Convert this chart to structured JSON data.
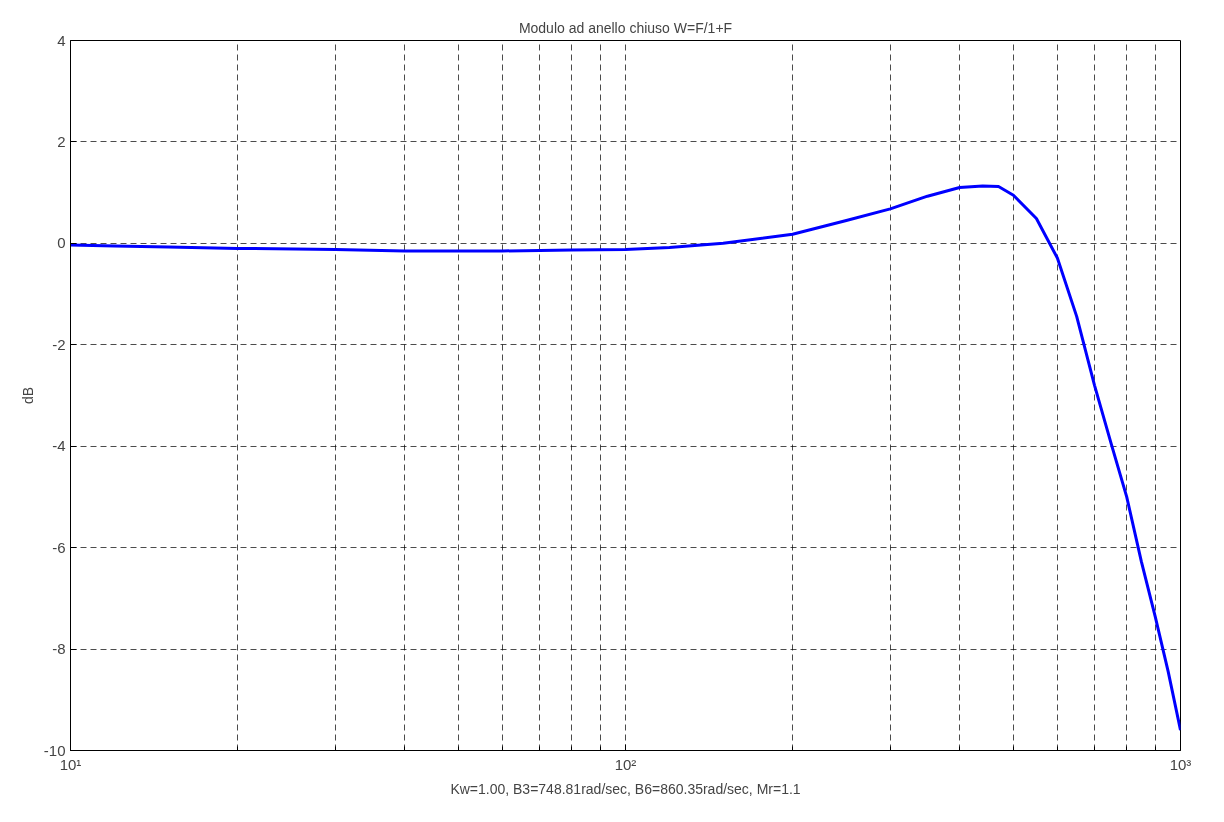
{
  "chart_data": {
    "type": "line",
    "title": "Modulo ad anello chiuso W=F/1+F",
    "xlabel": "Kw=1.00, B3=748.81rad/sec, B6=860.35rad/sec, Mr=1.1",
    "ylabel": "dB",
    "log": "x",
    "grid": true,
    "line_style": "solid",
    "marker": "none",
    "xlim": [
      10,
      1000
    ],
    "xticks": [
      {
        "value": 10,
        "label": "10¹"
      },
      {
        "value": 100,
        "label": "10²"
      },
      {
        "value": 1000,
        "label": "10³"
      }
    ],
    "ylim": [
      -10,
      4
    ],
    "yticks": [
      -10,
      -8,
      -6,
      -4,
      -2,
      0,
      2,
      4
    ],
    "series": [
      {
        "color": "#0000ff",
        "x": [
          10,
          12,
          15,
          20,
          30,
          40,
          60,
          80,
          100,
          120,
          150,
          200,
          250,
          300,
          350,
          400,
          440,
          470,
          500,
          550,
          600,
          650,
          700,
          750,
          800,
          850,
          900,
          950,
          1000
        ],
        "values": [
          -0.03,
          -0.05,
          -0.07,
          -0.1,
          -0.12,
          -0.15,
          -0.15,
          -0.13,
          -0.12,
          -0.08,
          0,
          0.18,
          0.45,
          0.68,
          0.93,
          1.1,
          1.13,
          1.12,
          0.95,
          0.49,
          -0.29,
          -1.44,
          -2.8,
          -3.95,
          -5.0,
          -6.27,
          -7.35,
          -8.44,
          -9.6
        ]
      }
    ]
  }
}
